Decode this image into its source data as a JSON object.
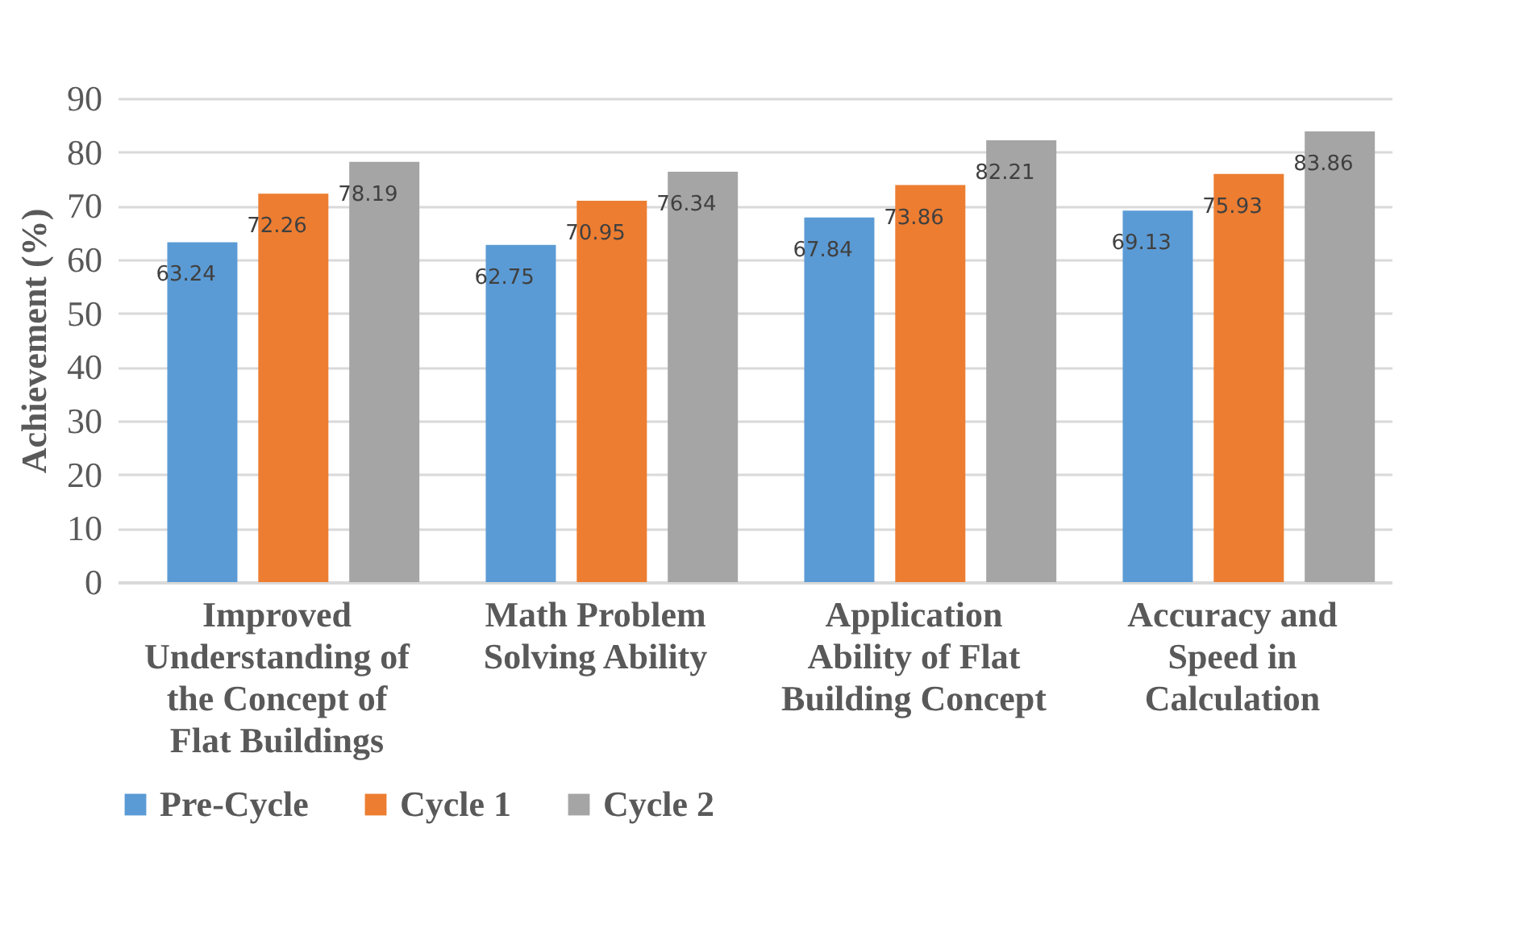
{
  "chart_data": {
    "type": "bar",
    "ylabel": "Achievement (%)",
    "categories": [
      "Improved Understanding of the Concept of Flat Buildings",
      "Math Problem Solving Ability",
      "Application Ability of Flat Building Concept",
      "Accuracy and Speed in Calculation"
    ],
    "series": [
      {
        "name": "Pre-Cycle",
        "color": "#5b9bd5",
        "values": [
          63.24,
          62.75,
          67.84,
          69.13
        ]
      },
      {
        "name": "Cycle 1",
        "color": "#ed7d31",
        "values": [
          72.26,
          70.95,
          73.86,
          75.93
        ]
      },
      {
        "name": "Cycle 2",
        "color": "#a5a5a5",
        "values": [
          78.19,
          76.34,
          82.21,
          83.86
        ]
      }
    ],
    "ylim": [
      0,
      90
    ],
    "yticks": [
      0,
      10,
      20,
      30,
      40,
      50,
      60,
      70,
      80,
      90
    ],
    "grid": "y",
    "legend": "bottom",
    "data_labels": true
  }
}
